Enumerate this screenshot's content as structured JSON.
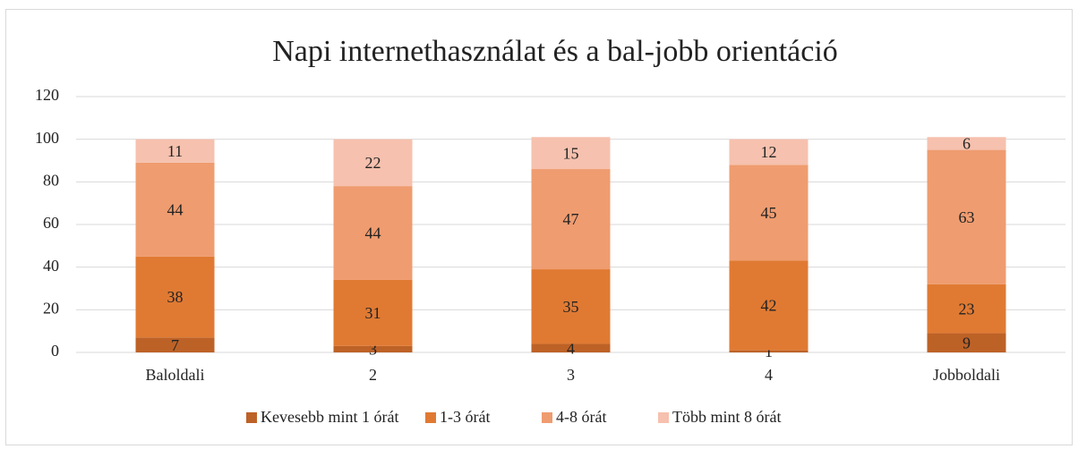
{
  "chart_data": {
    "type": "stacked_bar",
    "title": "Napi internethasználat és a bal-jobb orientáció",
    "categories": [
      "Baloldali",
      "2",
      "3",
      "4",
      "Jobboldali"
    ],
    "series": [
      {
        "name": "Kevesebb mint 1 órát",
        "color": "#BD6227",
        "values": [
          7,
          3,
          4,
          1,
          9
        ]
      },
      {
        "name": "1-3 órát",
        "color": "#E07A33",
        "values": [
          38,
          31,
          35,
          42,
          23
        ]
      },
      {
        "name": "4-8 órát",
        "color": "#EF9C70",
        "values": [
          44,
          44,
          47,
          45,
          63
        ]
      },
      {
        "name": "Több mint 8 órát",
        "color": "#F6C1AE",
        "values": [
          11,
          22,
          15,
          12,
          6
        ]
      }
    ],
    "ylim": [
      0,
      120
    ],
    "yticks": [
      0,
      20,
      40,
      60,
      80,
      100,
      120
    ],
    "grid": true,
    "legend": "bottom"
  }
}
